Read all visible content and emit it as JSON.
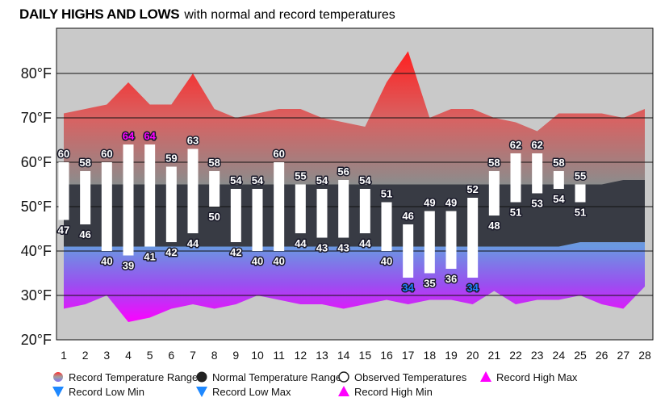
{
  "chart_data": {
    "type": "area",
    "title": "DAILY HIGHS AND LOWS",
    "subtitle": "with normal and record temperatures",
    "x": [
      1,
      2,
      3,
      4,
      5,
      6,
      7,
      8,
      9,
      10,
      11,
      12,
      13,
      14,
      15,
      16,
      17,
      18,
      19,
      20,
      21,
      22,
      23,
      24,
      25,
      26,
      27,
      28
    ],
    "ylim": [
      20,
      90
    ],
    "yticks": [
      20,
      30,
      40,
      50,
      60,
      70,
      80
    ],
    "ytick_labels": [
      "20°F",
      "30°F",
      "40°F",
      "50°F",
      "60°F",
      "70°F",
      "80°F"
    ],
    "grid": true,
    "legend_placement": "bottom",
    "record_high": [
      71,
      72,
      73,
      78,
      73,
      73,
      80,
      72,
      70,
      71,
      72,
      72,
      70,
      69,
      68,
      78,
      85,
      70,
      72,
      72,
      70,
      69,
      67,
      71,
      71,
      71,
      70,
      72
    ],
    "record_low": [
      27,
      28,
      30,
      24,
      25,
      27,
      28,
      27,
      28,
      30,
      29,
      28,
      28,
      27,
      28,
      29,
      28,
      29,
      29,
      28,
      31,
      28,
      29,
      29,
      30,
      28,
      27,
      32
    ],
    "normal_high": [
      55,
      55,
      55,
      55,
      55,
      55,
      55,
      55,
      55,
      55,
      55,
      55,
      55,
      55,
      55,
      55,
      55,
      55,
      55,
      55,
      55,
      55,
      55,
      55,
      55,
      55,
      56,
      56
    ],
    "normal_low": [
      41,
      41,
      41,
      41,
      41,
      41,
      41,
      41,
      41,
      41,
      41,
      41,
      41,
      41,
      41,
      41,
      41,
      41,
      41,
      41,
      41,
      41,
      41,
      41,
      42,
      42,
      42,
      42
    ],
    "observed_high": [
      60,
      58,
      60,
      64,
      64,
      59,
      63,
      58,
      54,
      54,
      60,
      55,
      54,
      56,
      54,
      51,
      46,
      49,
      49,
      52,
      58,
      62,
      62,
      58,
      55,
      null,
      null,
      null
    ],
    "observed_low": [
      47,
      46,
      40,
      39,
      41,
      42,
      44,
      50,
      42,
      40,
      40,
      44,
      43,
      43,
      44,
      40,
      34,
      35,
      36,
      34,
      48,
      51,
      53,
      54,
      51,
      null,
      null,
      null
    ],
    "highlight_high_days": [
      4,
      5
    ],
    "highlight_low_days": [
      17,
      20
    ],
    "colors": {
      "background": "#c9c9c9",
      "record_top": "#ff2020",
      "record_mid": "#8c8c8c",
      "record_bottom": "#ff00ff",
      "normal": "#383b44",
      "observed": "#ffffff",
      "record_high_label": "#ff00ff",
      "record_low_label": "#1e7fff"
    },
    "legend": [
      {
        "label": "Record Temperature Range",
        "symbol": "gradient-circle"
      },
      {
        "label": "Normal Temperature Range",
        "symbol": "black-circle"
      },
      {
        "label": "Observed Temperatures",
        "symbol": "open-circle"
      },
      {
        "label": "Record High Max",
        "symbol": "magenta-triangle-up"
      },
      {
        "label": "Record Low Min",
        "symbol": "blue-triangle-down"
      },
      {
        "label": "Record Low Max",
        "symbol": "blue-triangle-down"
      },
      {
        "label": "Record High Min",
        "symbol": "magenta-triangle-up"
      }
    ]
  }
}
